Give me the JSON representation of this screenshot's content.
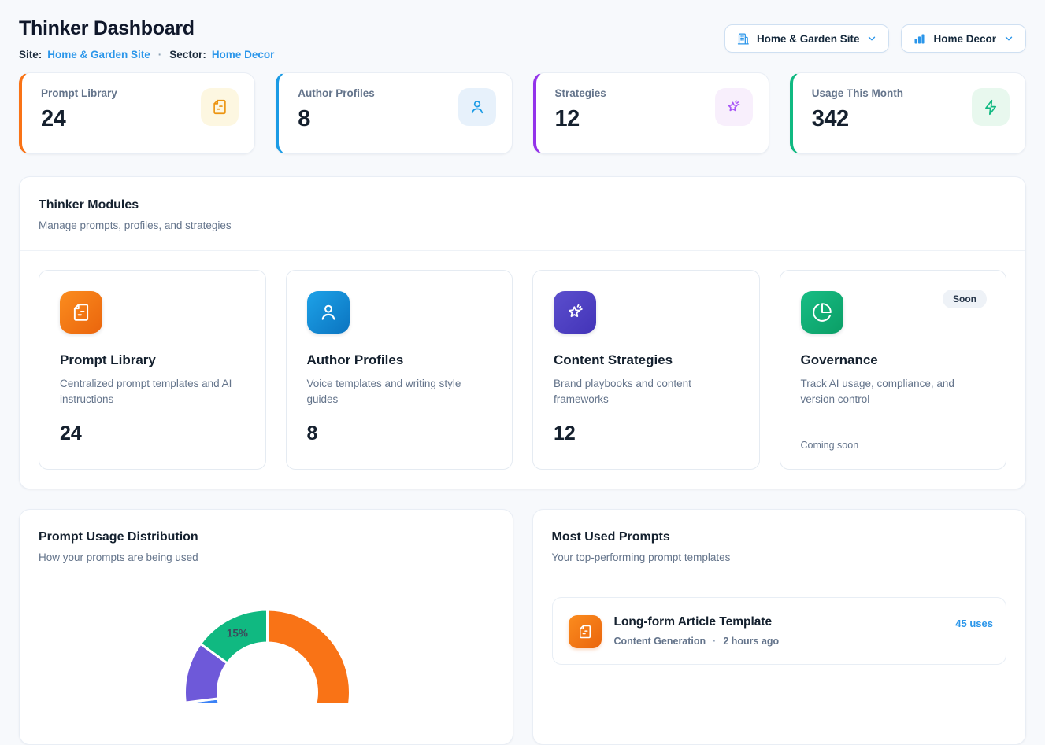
{
  "page": {
    "title": "Thinker Dashboard"
  },
  "header": {
    "site_label": "Site:",
    "site_value": "Home & Garden Site",
    "separator": "·",
    "sector_label": "Sector:",
    "sector_value": "Home Decor",
    "site_button": {
      "label": "Home & Garden Site",
      "icon": "building-icon",
      "chevron": "chevron-down-icon"
    },
    "sector_button": {
      "label": "Home Decor",
      "icon": "bar-chart-icon",
      "chevron": "chevron-down-icon"
    }
  },
  "colors": {
    "accent_orange": "#f97316",
    "accent_blue": "#1b9be5",
    "accent_purple": "#9333ea",
    "accent_green": "#10b981",
    "link_blue": "#2b96ea",
    "heading": "#0f172a",
    "muted": "#64748b"
  },
  "stats": [
    {
      "label": "Prompt Library",
      "value": "24",
      "icon": "document-icon"
    },
    {
      "label": "Author Profiles",
      "value": "8",
      "icon": "user-icon"
    },
    {
      "label": "Strategies",
      "value": "12",
      "icon": "star-sparkle-icon"
    },
    {
      "label": "Usage This Month",
      "value": "342",
      "icon": "zap-icon"
    }
  ],
  "modules_panel": {
    "title": "Thinker Modules",
    "subtitle": "Manage prompts, profiles, and strategies",
    "cards": [
      {
        "title": "Prompt Library",
        "description": "Centralized prompt templates and AI instructions",
        "count": "24",
        "icon": "document-icon"
      },
      {
        "title": "Author Profiles",
        "description": "Voice templates and writing style guides",
        "count": "8",
        "icon": "user-icon"
      },
      {
        "title": "Content Strategies",
        "description": "Brand playbooks and content frameworks",
        "count": "12",
        "icon": "star-sparkle-icon"
      },
      {
        "title": "Governance",
        "description": "Track AI usage, compliance, and version control",
        "badge": "Soon",
        "footer": "Coming soon",
        "icon": "pie-chart-icon"
      }
    ]
  },
  "usage_panel": {
    "title": "Prompt Usage Distribution",
    "subtitle": "How your prompts are being used"
  },
  "chart_data": {
    "type": "pie",
    "variant": "donut",
    "title": "Prompt Usage Distribution",
    "legend": "none",
    "start_angle_deg": 0,
    "direction": "clockwise",
    "inner_radius_px": 63,
    "outer_radius_px": 105,
    "layout_note": "donut is vertically cut off by the bottom edge of the viewport; only the top arc is visible; values estimated except the labeled 15% slice",
    "segments": [
      {
        "name": "orange-slice",
        "color": "#f97316",
        "value": 45,
        "label": ""
      },
      {
        "name": "hidden-bottom-slice",
        "color": "#3b82f6",
        "value": 28,
        "label": ""
      },
      {
        "name": "purple-slice",
        "color": "#6e59d9",
        "value": 12,
        "label": ""
      },
      {
        "name": "green-slice",
        "color": "#10b981",
        "value": 15,
        "label": "15%"
      }
    ]
  },
  "most_used": {
    "title": "Most Used Prompts",
    "subtitle": "Your top-performing prompt templates",
    "items": [
      {
        "title": "Long-form Article Template",
        "category": "Content Generation",
        "separator": "·",
        "time": "2 hours ago",
        "uses": "45 uses",
        "icon": "document-icon"
      }
    ]
  }
}
